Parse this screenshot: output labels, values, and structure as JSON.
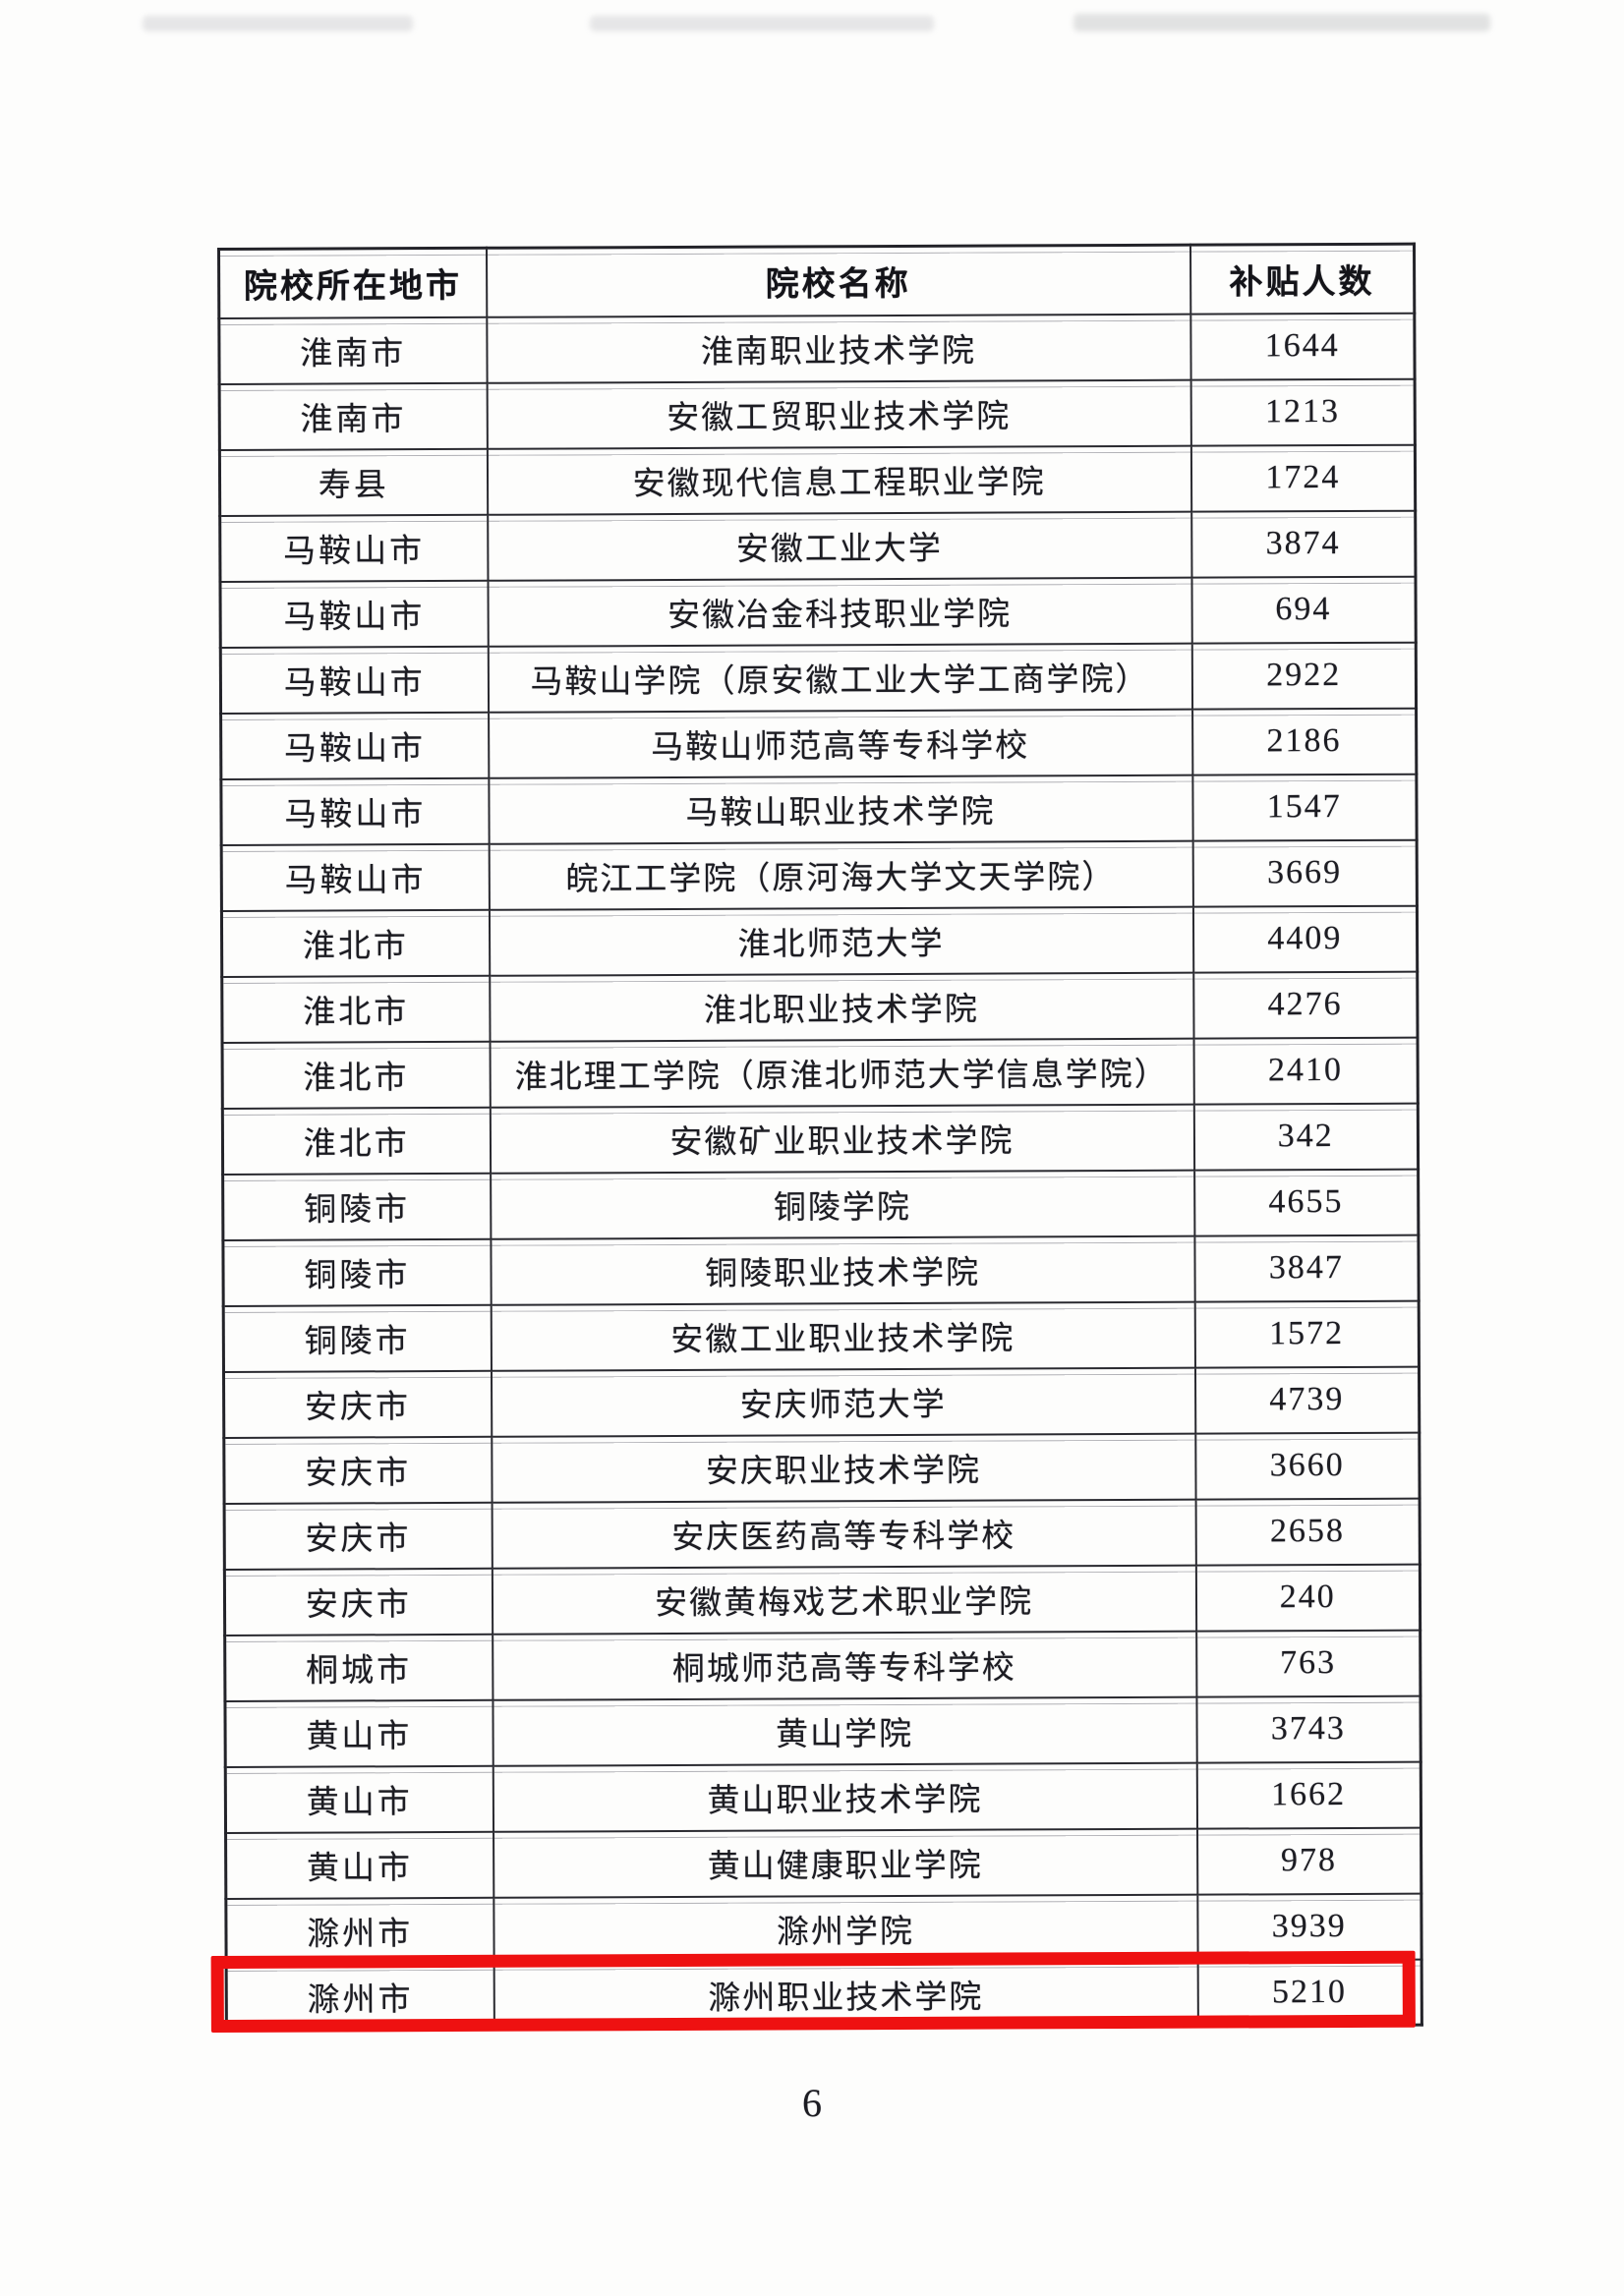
{
  "page": {
    "number": "6"
  },
  "table": {
    "headers": [
      "院校所在地市",
      "院校名称",
      "补贴人数"
    ],
    "highlight_color": "#ee1111",
    "rows": [
      {
        "city": "淮南市",
        "name": "淮南职业技术学院",
        "count": "1644",
        "highlighted": false
      },
      {
        "city": "淮南市",
        "name": "安徽工贸职业技术学院",
        "count": "1213",
        "highlighted": false
      },
      {
        "city": "寿县",
        "name": "安徽现代信息工程职业学院",
        "count": "1724",
        "highlighted": false
      },
      {
        "city": "马鞍山市",
        "name": "安徽工业大学",
        "count": "3874",
        "highlighted": false
      },
      {
        "city": "马鞍山市",
        "name": "安徽冶金科技职业学院",
        "count": "694",
        "highlighted": false
      },
      {
        "city": "马鞍山市",
        "name": "马鞍山学院（原安徽工业大学工商学院）",
        "count": "2922",
        "highlighted": false
      },
      {
        "city": "马鞍山市",
        "name": "马鞍山师范高等专科学校",
        "count": "2186",
        "highlighted": false
      },
      {
        "city": "马鞍山市",
        "name": "马鞍山职业技术学院",
        "count": "1547",
        "highlighted": false
      },
      {
        "city": "马鞍山市",
        "name": "皖江工学院（原河海大学文天学院）",
        "count": "3669",
        "highlighted": false
      },
      {
        "city": "淮北市",
        "name": "淮北师范大学",
        "count": "4409",
        "highlighted": false
      },
      {
        "city": "淮北市",
        "name": "淮北职业技术学院",
        "count": "4276",
        "highlighted": false
      },
      {
        "city": "淮北市",
        "name": "淮北理工学院（原淮北师范大学信息学院）",
        "count": "2410",
        "highlighted": false
      },
      {
        "city": "淮北市",
        "name": "安徽矿业职业技术学院",
        "count": "342",
        "highlighted": false
      },
      {
        "city": "铜陵市",
        "name": "铜陵学院",
        "count": "4655",
        "highlighted": false
      },
      {
        "city": "铜陵市",
        "name": "铜陵职业技术学院",
        "count": "3847",
        "highlighted": false
      },
      {
        "city": "铜陵市",
        "name": "安徽工业职业技术学院",
        "count": "1572",
        "highlighted": false
      },
      {
        "city": "安庆市",
        "name": "安庆师范大学",
        "count": "4739",
        "highlighted": false
      },
      {
        "city": "安庆市",
        "name": "安庆职业技术学院",
        "count": "3660",
        "highlighted": false
      },
      {
        "city": "安庆市",
        "name": "安庆医药高等专科学校",
        "count": "2658",
        "highlighted": false
      },
      {
        "city": "安庆市",
        "name": "安徽黄梅戏艺术职业学院",
        "count": "240",
        "highlighted": false
      },
      {
        "city": "桐城市",
        "name": "桐城师范高等专科学校",
        "count": "763",
        "highlighted": false
      },
      {
        "city": "黄山市",
        "name": "黄山学院",
        "count": "3743",
        "highlighted": false
      },
      {
        "city": "黄山市",
        "name": "黄山职业技术学院",
        "count": "1662",
        "highlighted": false
      },
      {
        "city": "黄山市",
        "name": "黄山健康职业学院",
        "count": "978",
        "highlighted": false
      },
      {
        "city": "滁州市",
        "name": "滁州学院",
        "count": "3939",
        "highlighted": false
      },
      {
        "city": "滁州市",
        "name": "滁州职业技术学院",
        "count": "5210",
        "highlighted": true
      }
    ]
  }
}
